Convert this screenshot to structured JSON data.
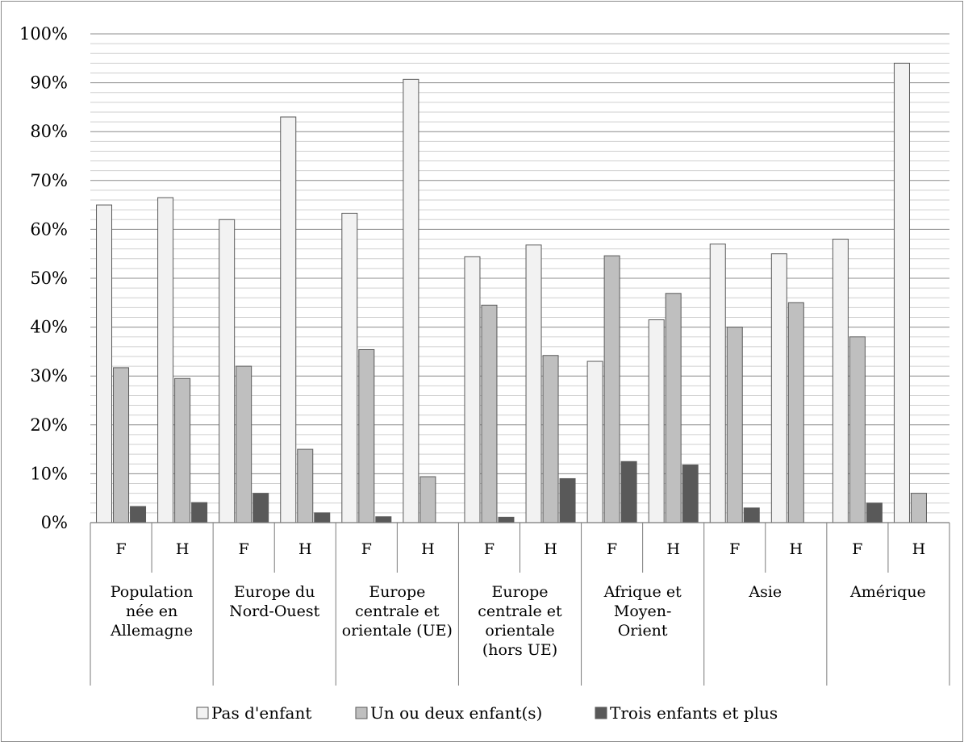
{
  "chart_data": {
    "type": "bar",
    "title": "",
    "ylim": [
      0,
      100
    ],
    "y_major_ticks": [
      "0%",
      "10%",
      "20%",
      "30%",
      "40%",
      "50%",
      "60%",
      "70%",
      "80%",
      "90%",
      "100%"
    ],
    "grid": "on (minor every 2%)",
    "legend_position": "bottom",
    "groups": [
      {
        "label": "Population née en Allemagne",
        "lines": [
          "Population",
          "née en",
          "Allemagne"
        ],
        "categories": [
          "F",
          "H"
        ]
      },
      {
        "label": "Europe du Nord-Ouest",
        "lines": [
          "Europe du",
          "Nord-Ouest"
        ],
        "categories": [
          "F",
          "H"
        ]
      },
      {
        "label": "Europe centrale et orientale (UE)",
        "lines": [
          "Europe",
          "centrale et",
          "orientale (UE)"
        ],
        "categories": [
          "F",
          "H"
        ]
      },
      {
        "label": "Europe centrale et orientale (hors UE)",
        "lines": [
          "Europe",
          "centrale et",
          "orientale",
          "(hors UE)"
        ],
        "categories": [
          "F",
          "H"
        ]
      },
      {
        "label": "Afrique et Moyen-Orient",
        "lines": [
          "Afrique et",
          "Moyen-",
          "Orient"
        ],
        "categories": [
          "F",
          "H"
        ]
      },
      {
        "label": "Asie",
        "lines": [
          "Asie"
        ],
        "categories": [
          "F",
          "H"
        ]
      },
      {
        "label": "Amérique",
        "lines": [
          "Amérique"
        ],
        "categories": [
          "F",
          "H"
        ]
      }
    ],
    "series": [
      {
        "name": "Pas d'enfant",
        "color": "#f2f2f2",
        "values": [
          65,
          66.5,
          62,
          83,
          63.3,
          90.7,
          54.4,
          56.8,
          33,
          41.5,
          57,
          55,
          58,
          94
        ]
      },
      {
        "name": "Un ou deux enfant(s)",
        "color": "#bfbfbf",
        "values": [
          31.7,
          29.5,
          32,
          15,
          35.4,
          9.4,
          44.5,
          34.2,
          54.6,
          46.9,
          40,
          45,
          38,
          6
        ]
      },
      {
        "name": "Trois enfants et plus",
        "color": "#595959",
        "values": [
          3.3,
          4.1,
          6,
          2,
          1.2,
          0,
          1.1,
          9,
          12.5,
          11.8,
          3,
          0,
          4,
          0
        ]
      }
    ]
  }
}
